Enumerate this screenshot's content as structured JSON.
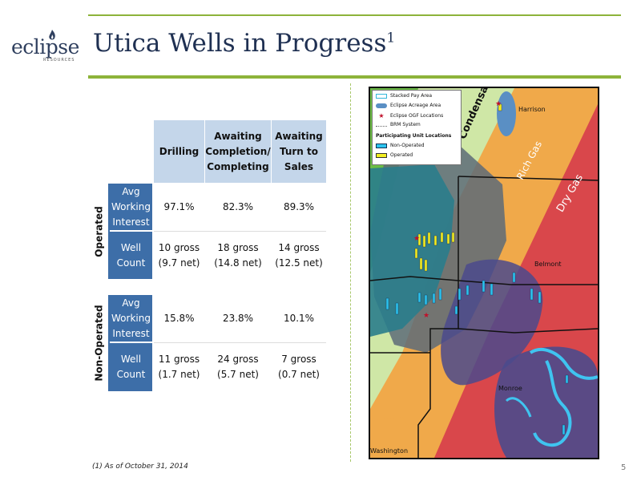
{
  "logo": {
    "name": "eclipse",
    "sub": "RESOURCES"
  },
  "title": {
    "text": "Utica Wells in Progress",
    "sup": "1"
  },
  "table": {
    "headers": [
      {
        "line1": "Drilling",
        "line2": "",
        "line3": ""
      },
      {
        "line1": "Awaiting",
        "line2": "Completion/",
        "line3": "Completing"
      },
      {
        "line1": "Awaiting",
        "line2": "Turn to",
        "line3": "Sales"
      }
    ],
    "sections": [
      {
        "label": "Operated",
        "rows": [
          {
            "label_line1": "Avg",
            "label_line2": "Working",
            "label_line3": "Interest",
            "cells": [
              {
                "l1": "97.1%",
                "l2": ""
              },
              {
                "l1": "82.3%",
                "l2": ""
              },
              {
                "l1": "89.3%",
                "l2": ""
              }
            ]
          },
          {
            "label_line1": "Well",
            "label_line2": "Count",
            "label_line3": "",
            "cells": [
              {
                "l1": "10 gross",
                "l2": "(9.7 net)"
              },
              {
                "l1": "18 gross",
                "l2": "(14.8 net)"
              },
              {
                "l1": "14 gross",
                "l2": "(12.5 net)"
              }
            ]
          }
        ]
      },
      {
        "label": "Non-Operated",
        "rows": [
          {
            "label_line1": "Avg",
            "label_line2": "Working",
            "label_line3": "Interest",
            "cells": [
              {
                "l1": "15.8%",
                "l2": ""
              },
              {
                "l1": "23.8%",
                "l2": ""
              },
              {
                "l1": "10.1%",
                "l2": ""
              }
            ]
          },
          {
            "label_line1": "Well",
            "label_line2": "Count",
            "label_line3": "",
            "cells": [
              {
                "l1": "11 gross",
                "l2": "(1.7 net)"
              },
              {
                "l1": "24 gross",
                "l2": "(5.7 net)"
              },
              {
                "l1": "7 gross",
                "l2": "(0.7 net)"
              }
            ]
          }
        ]
      }
    ]
  },
  "map": {
    "legend": [
      {
        "label": "Stacked Pay Area",
        "color": "#33b6d9"
      },
      {
        "label": "Eclipse Acreage Area",
        "color": "#5a8fc4"
      },
      {
        "label": "Eclipse OGF Locations",
        "color": "#c0102a"
      },
      {
        "label": "BRM System",
        "color": "#666666"
      },
      {
        "label": "Participating Unit Locations",
        "color": ""
      },
      {
        "label": "Non-Operated",
        "color": "#2cc3ee"
      },
      {
        "label": "Operated",
        "color": "#f2ee22"
      }
    ],
    "zones": {
      "condensate": "Condensate",
      "rich_gas": "Rich Gas",
      "dry_gas": "Dry Gas"
    },
    "counties": {
      "harrison": "Harrison",
      "belmont": "Belmont",
      "monroe": "Monroe",
      "washington": "Washington"
    },
    "colors": {
      "green": "#6cbd45",
      "light_green": "#cfe7a6",
      "orange": "#f0a94a",
      "red": "#d9474b",
      "teal": "#2a7d8c",
      "purple": "#4b4a8c",
      "gray": "#5d6b78"
    }
  },
  "footnote": "(1) As of October 31, 2014",
  "page_number": "5"
}
